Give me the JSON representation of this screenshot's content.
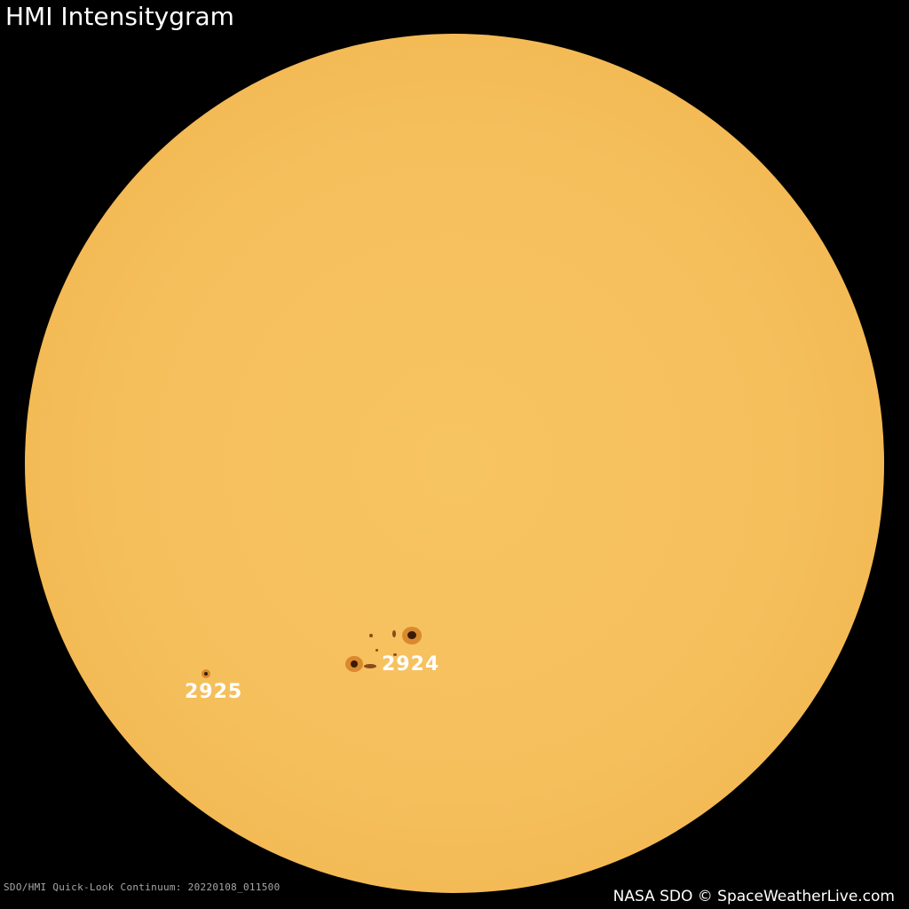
{
  "title": "HMI Intensitygram",
  "credit": "NASA SDO © SpaceWeatherLive.com",
  "meta": "SDO/HMI Quick-Look Continuum: 20220108_011500",
  "regions": [
    {
      "label": "2924"
    },
    {
      "label": "2925"
    }
  ],
  "colors": {
    "sun": "#f5bf5c",
    "background": "#000000"
  }
}
